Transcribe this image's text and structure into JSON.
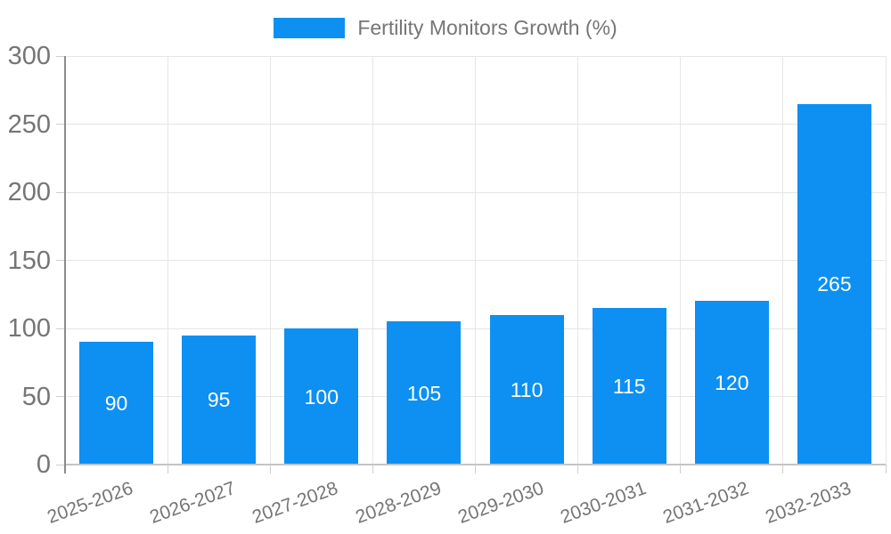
{
  "chart_data": {
    "type": "bar",
    "title": "Fertility Monitors Growth (%)",
    "series_name": "Fertility Monitors Growth (%)",
    "categories": [
      "2025-2026",
      "2026-2027",
      "2027-2028",
      "2028-2029",
      "2029-2030",
      "2030-2031",
      "2031-2032",
      "2032-2033"
    ],
    "values": [
      90,
      95,
      100,
      105,
      110,
      115,
      120,
      265
    ],
    "value_labels": [
      "90",
      "95",
      "100",
      "105",
      "110",
      "115",
      "120",
      "265"
    ],
    "xlabel": "",
    "ylabel": "",
    "ylim": [
      0,
      300
    ],
    "yticks": [
      0,
      50,
      100,
      150,
      200,
      250,
      300
    ],
    "ytick_labels": [
      "0",
      "50",
      "100",
      "150",
      "200",
      "250",
      "300"
    ],
    "grid": true,
    "legend_position": "top-center",
    "x_label_rotation_deg": -20
  },
  "colors": {
    "bar_fill": "#0d90f2",
    "bar_value_text": "#ffffff",
    "axis_label_text": "#757575",
    "legend_text": "#757575",
    "grid_line": "#e6e6e6",
    "y_axis_line": "#8c8c8c",
    "x_axis_line": "#c4c4c4",
    "tick_mark": "#cfcfcf",
    "background": "#ffffff"
  },
  "legend": {
    "label": "Fertility Monitors Growth (%)"
  }
}
